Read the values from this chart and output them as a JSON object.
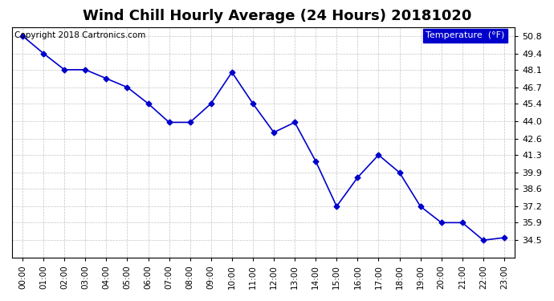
{
  "title": "Wind Chill Hourly Average (24 Hours) 20181020",
  "copyright_text": "Copyright 2018 Cartronics.com",
  "legend_label": "Temperature  (°F)",
  "x_labels": [
    "00:00",
    "01:00",
    "02:00",
    "03:00",
    "04:00",
    "05:00",
    "06:00",
    "07:00",
    "08:00",
    "09:00",
    "10:00",
    "11:00",
    "12:00",
    "13:00",
    "14:00",
    "15:00",
    "16:00",
    "17:00",
    "18:00",
    "19:00",
    "20:00",
    "21:00",
    "22:00",
    "23:00"
  ],
  "y_values": [
    50.8,
    49.4,
    48.1,
    48.1,
    47.4,
    46.7,
    45.4,
    43.9,
    43.9,
    45.4,
    47.9,
    45.4,
    43.1,
    43.9,
    40.8,
    37.2,
    39.5,
    41.3,
    39.9,
    37.2,
    35.9,
    35.9,
    34.5,
    34.7
  ],
  "ylim_min": 33.1,
  "ylim_max": 51.5,
  "yticks": [
    34.5,
    35.9,
    37.2,
    38.6,
    39.9,
    41.3,
    42.6,
    44.0,
    45.4,
    46.7,
    48.1,
    49.4,
    50.8
  ],
  "line_color": "#0000cc",
  "marker_color": "#0000cc",
  "bg_color": "#ffffff",
  "plot_bg_color": "#ffffff",
  "grid_color": "#aaaaaa",
  "title_fontsize": 13,
  "copyright_fontsize": 7.5,
  "legend_bg_color": "#0000cc",
  "legend_text_color": "#ffffff"
}
